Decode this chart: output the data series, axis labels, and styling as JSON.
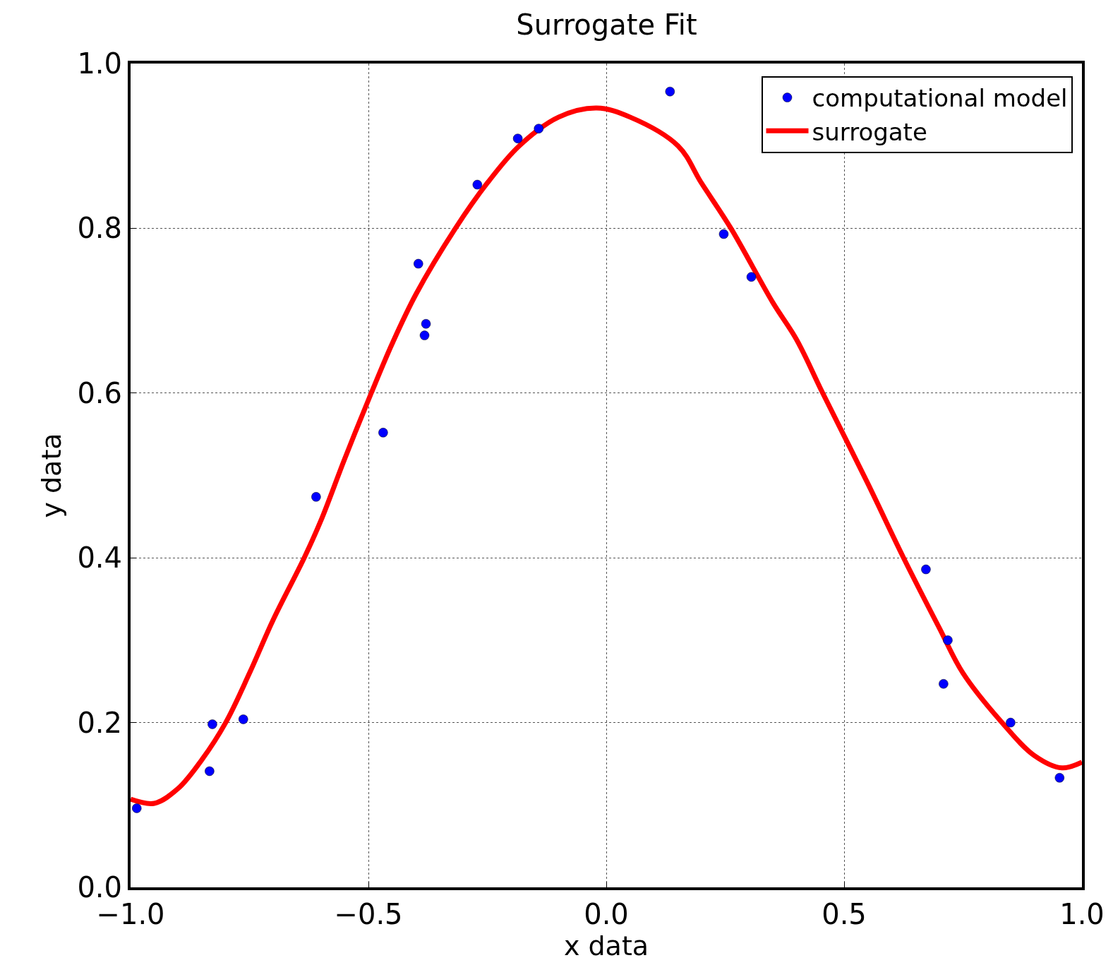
{
  "chart_data": {
    "type": "scatter",
    "title": "Surrogate Fit",
    "xlabel": "x data",
    "ylabel": "y data",
    "xlim": [
      -1.0,
      1.0
    ],
    "ylim": [
      0.0,
      1.0
    ],
    "xticks": [
      {
        "value": -1.0,
        "label": "−1.0"
      },
      {
        "value": -0.5,
        "label": "−0.5"
      },
      {
        "value": 0.0,
        "label": "0.0"
      },
      {
        "value": 0.5,
        "label": "0.5"
      },
      {
        "value": 1.0,
        "label": "1.0"
      }
    ],
    "yticks": [
      {
        "value": 0.0,
        "label": "0.0"
      },
      {
        "value": 0.2,
        "label": "0.2"
      },
      {
        "value": 0.4,
        "label": "0.4"
      },
      {
        "value": 0.6,
        "label": "0.6"
      },
      {
        "value": 0.8,
        "label": "0.8"
      },
      {
        "value": 1.0,
        "label": "1.0"
      }
    ],
    "grid": true,
    "legend": "top right",
    "series": [
      {
        "name": "computational model",
        "marker": "circle",
        "color": "#0000ff",
        "x": [
          -0.987,
          -0.834,
          -0.828,
          -0.763,
          -0.61,
          -0.469,
          -0.395,
          -0.379,
          -0.382,
          -0.271,
          -0.186,
          -0.142,
          0.134,
          0.247,
          0.305,
          0.672,
          0.718,
          0.709,
          0.85,
          0.953
        ],
        "values": [
          0.096,
          0.141,
          0.198,
          0.204,
          0.474,
          0.552,
          0.757,
          0.684,
          0.67,
          0.853,
          0.909,
          0.921,
          0.966,
          0.793,
          0.741,
          0.386,
          0.3,
          0.247,
          0.2,
          0.133
        ]
      },
      {
        "name": "surrogate",
        "type": "line",
        "line_style": "solid",
        "color": "#ff0000",
        "x": [
          -1.0,
          -0.95,
          -0.9,
          -0.85,
          -0.8,
          -0.75,
          -0.7,
          -0.635,
          -0.6,
          -0.55,
          -0.494,
          -0.45,
          -0.4,
          -0.317,
          -0.25,
          -0.183,
          -0.1,
          -0.02,
          0.05,
          0.151,
          0.2,
          0.262,
          0.35,
          0.4,
          0.455,
          0.55,
          0.625,
          0.7,
          0.75,
          0.832,
          0.9,
          0.958,
          1.0
        ],
        "values": [
          0.107,
          0.102,
          0.12,
          0.155,
          0.2,
          0.26,
          0.325,
          0.4,
          0.445,
          0.52,
          0.6,
          0.66,
          0.72,
          0.8,
          0.855,
          0.9,
          0.935,
          0.946,
          0.935,
          0.9,
          0.855,
          0.8,
          0.71,
          0.665,
          0.6,
          0.49,
          0.4,
          0.315,
          0.26,
          0.2,
          0.16,
          0.145,
          0.152
        ]
      }
    ]
  }
}
